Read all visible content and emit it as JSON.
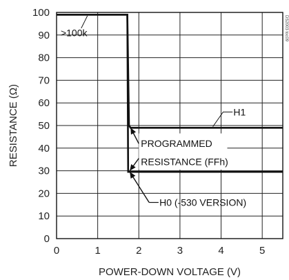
{
  "chart_data": {
    "type": "line",
    "xlabel": "POWER-DOWN VOLTAGE (V)",
    "ylabel": "RESISTANCE (Ω)",
    "xlim": [
      0,
      5.5
    ],
    "ylim": [
      0,
      100
    ],
    "x_ticks": [
      "0",
      "1",
      "2",
      "3",
      "4",
      "5"
    ],
    "y_ticks": [
      "0",
      "10",
      "20",
      "30",
      "40",
      "50",
      "60",
      "70",
      "80",
      "90",
      "100"
    ],
    "grid": true,
    "series": [
      {
        "name": "H1",
        "points": [
          [
            0,
            99
          ],
          [
            1.72,
            99
          ],
          [
            1.76,
            50
          ],
          [
            1.8,
            49
          ],
          [
            5.5,
            49
          ]
        ]
      },
      {
        "name": "H0 (-530 VERSION)",
        "points": [
          [
            0,
            99
          ],
          [
            1.72,
            99
          ],
          [
            1.74,
            29.5
          ],
          [
            5.5,
            29.5
          ]
        ]
      }
    ],
    "annotations": [
      {
        "text": ">100k",
        "x": 0.1,
        "y": 91
      },
      {
        "text": "H1",
        "x": 4.3,
        "y": 56
      },
      {
        "text": "PROGRAMMED",
        "x": 2.05,
        "y": 42
      },
      {
        "text": "RESISTANCE (FFh)",
        "x": 2.05,
        "y": 34
      },
      {
        "text": "H0 (-530 VERSION)",
        "x": 2.5,
        "y": 16
      },
      {
        "text": "DS2003 toc09",
        "x": 5.5,
        "y": 100
      }
    ],
    "colors": {
      "line": "#111111",
      "grid": "#222222",
      "text": "#222222"
    }
  }
}
